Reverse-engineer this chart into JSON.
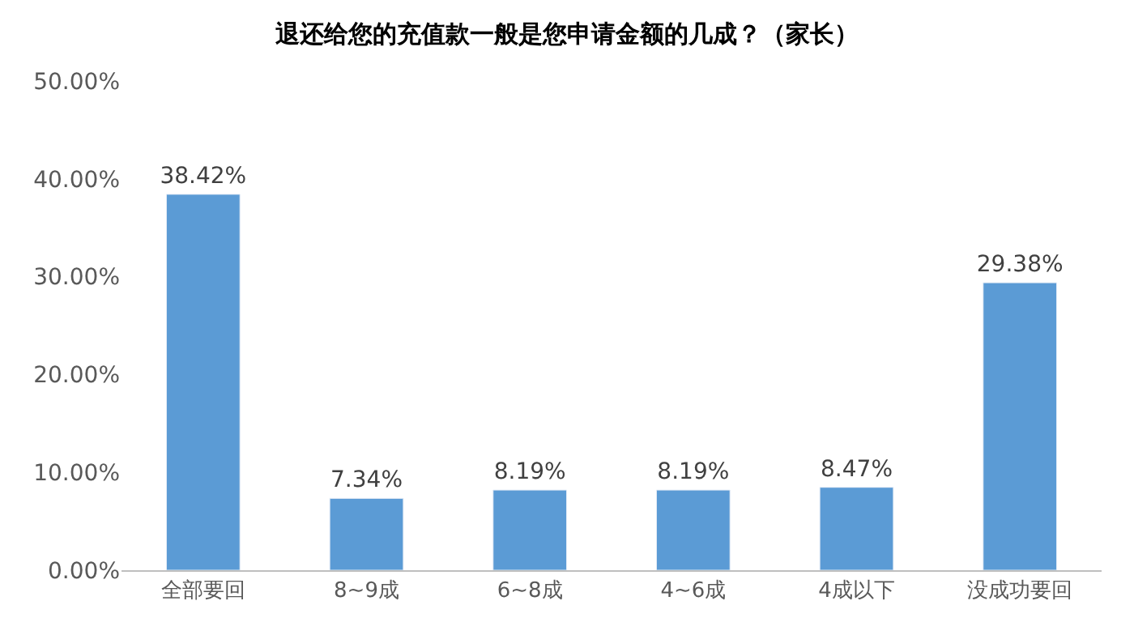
{
  "chart_data": {
    "type": "bar",
    "title": "退还给您的充值款一般是您申请金额的几成？（家长）",
    "categories": [
      "全部要回",
      "8~9成",
      "6~8成",
      "4~6成",
      "4成以下",
      "没成功要回"
    ],
    "values": [
      38.42,
      7.34,
      8.19,
      8.19,
      8.47,
      29.38
    ],
    "value_labels": [
      "38.42%",
      "7.34%",
      "8.19%",
      "8.19%",
      "8.47%",
      "29.38%"
    ],
    "color": "#5b9bd5",
    "ylim": [
      0,
      50
    ],
    "yticks": [
      {
        "value": 0,
        "label": "0.00%"
      },
      {
        "value": 10,
        "label": "10.00%"
      },
      {
        "value": 20,
        "label": "20.00%"
      },
      {
        "value": 30,
        "label": "30.00%"
      },
      {
        "value": 40,
        "label": "40.00%"
      },
      {
        "value": 50,
        "label": "50.00%"
      }
    ],
    "legend": false
  }
}
